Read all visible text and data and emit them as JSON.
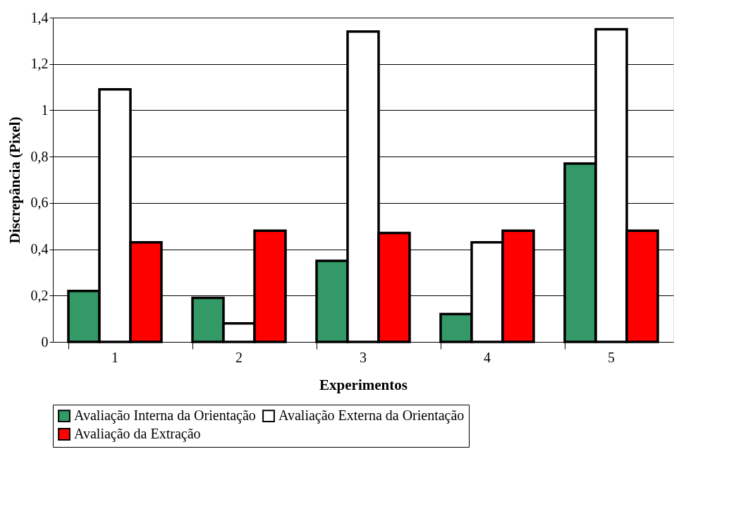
{
  "chart_data": {
    "type": "bar",
    "xlabel": "Experimentos",
    "ylabel": "Discrepância (Pixel)",
    "categories": [
      "1",
      "2",
      "3",
      "4",
      "5"
    ],
    "series": [
      {
        "name": "Avaliação Interna da Orientação",
        "color": "#339966",
        "values": [
          0.22,
          0.19,
          0.35,
          0.12,
          0.77
        ]
      },
      {
        "name": "Avaliação Externa da Orientação",
        "color": "#ffffff",
        "values": [
          1.09,
          0.08,
          1.34,
          0.43,
          1.35
        ]
      },
      {
        "name": "Avaliação da Extração",
        "color": "#ff0000",
        "values": [
          0.43,
          0.48,
          0.47,
          0.48,
          0.48
        ]
      }
    ],
    "ylim": [
      0,
      1.4
    ],
    "yticks": [
      0,
      {
        "value": 0.2,
        "label": "0,2"
      },
      {
        "value": 0.4,
        "label": "0,4"
      },
      {
        "value": 0.6,
        "label": "0,6"
      },
      {
        "value": 0.8,
        "label": "0,8"
      },
      1,
      {
        "value": 1.2,
        "label": "1,2"
      },
      {
        "value": 1.4,
        "label": "1,4"
      }
    ],
    "grid": "y",
    "legend": "bottom"
  }
}
